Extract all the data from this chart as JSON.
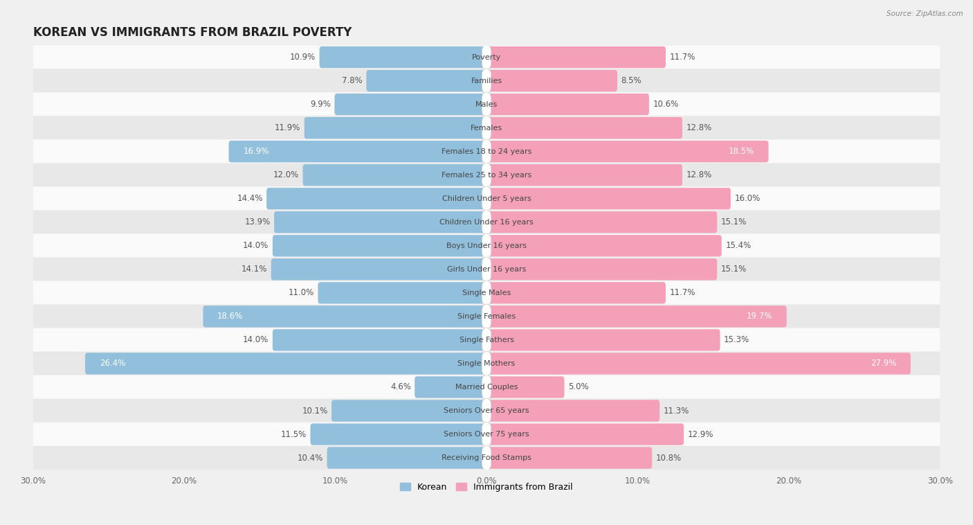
{
  "title": "KOREAN VS IMMIGRANTS FROM BRAZIL POVERTY",
  "source": "Source: ZipAtlas.com",
  "categories": [
    "Poverty",
    "Families",
    "Males",
    "Females",
    "Females 18 to 24 years",
    "Females 25 to 34 years",
    "Children Under 5 years",
    "Children Under 16 years",
    "Boys Under 16 years",
    "Girls Under 16 years",
    "Single Males",
    "Single Females",
    "Single Fathers",
    "Single Mothers",
    "Married Couples",
    "Seniors Over 65 years",
    "Seniors Over 75 years",
    "Receiving Food Stamps"
  ],
  "korean": [
    10.9,
    7.8,
    9.9,
    11.9,
    16.9,
    12.0,
    14.4,
    13.9,
    14.0,
    14.1,
    11.0,
    18.6,
    14.0,
    26.4,
    4.6,
    10.1,
    11.5,
    10.4
  ],
  "brazil": [
    11.7,
    8.5,
    10.6,
    12.8,
    18.5,
    12.8,
    16.0,
    15.1,
    15.4,
    15.1,
    11.7,
    19.7,
    15.3,
    27.9,
    5.0,
    11.3,
    12.9,
    10.8
  ],
  "korean_color": "#92c0dc",
  "brazil_color": "#f4a0b8",
  "highlight_korean": [
    4,
    11,
    13
  ],
  "highlight_brazil": [
    4,
    11,
    13
  ],
  "axis_max": 30.0,
  "background_color": "#f0f0f0",
  "row_color_light": "#fafafa",
  "row_color_dark": "#e8e8e8",
  "label_color_outside": "#555555",
  "label_color_inside": "#ffffff",
  "legend_korean": "Korean",
  "legend_brazil": "Immigrants from Brazil",
  "bar_height": 0.62,
  "title_fontsize": 12,
  "label_fontsize": 8.5,
  "category_fontsize": 8.0,
  "axis_fontsize": 8.5,
  "cat_box_color": "#ffffff",
  "cat_text_color": "#444444"
}
